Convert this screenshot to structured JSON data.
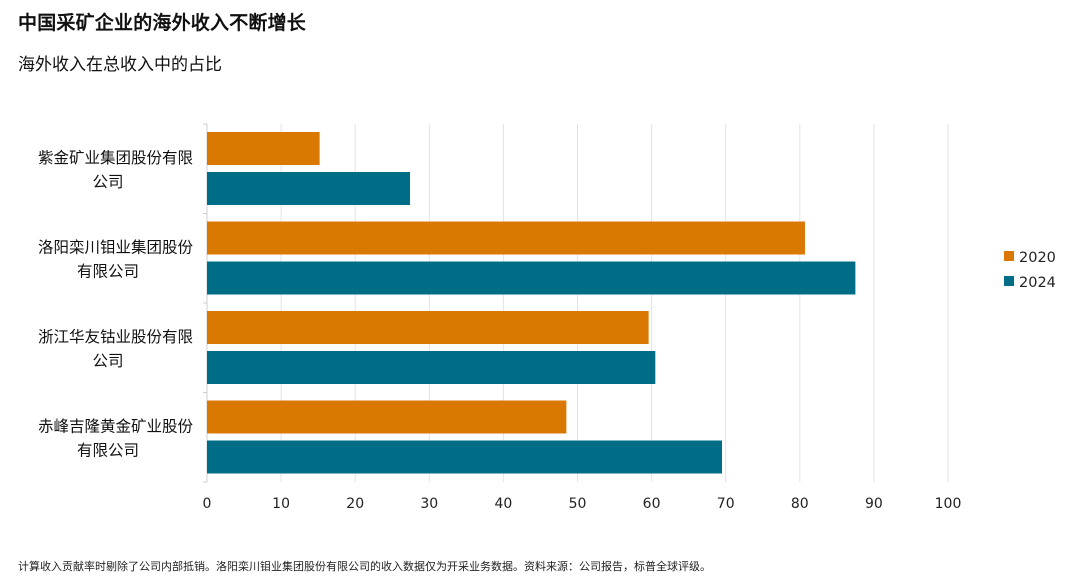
{
  "title": "中国采矿企业的海外收入不断增长",
  "subtitle": "海外收入在总收入中的占比",
  "footnote": "计算收入贡献率时剔除了公司内部抵销。洛阳栾川钼业集团股份有限公司的收入数据仅为开采业务数据。资料来源：公司报告，标普全球评级。",
  "chart_data": {
    "type": "bar",
    "orientation": "horizontal",
    "categories": [
      [
        "紫金矿业集团股份有限",
        "公司"
      ],
      [
        "洛阳栾川钼业集团股份",
        "有限公司"
      ],
      [
        "浙江华友钴业股份有限",
        "公司"
      ],
      [
        "赤峰吉隆黄金矿业股份",
        "有限公司"
      ]
    ],
    "series": [
      {
        "name": "2020",
        "color": "#D97904",
        "values": [
          15.2,
          80.7,
          59.6,
          48.5
        ]
      },
      {
        "name": "2024",
        "color": "#006D87",
        "values": [
          27.4,
          87.5,
          60.5,
          69.5
        ]
      }
    ],
    "xlim": [
      0,
      100
    ],
    "xticks": [
      0,
      10,
      20,
      30,
      40,
      50,
      60,
      70,
      80,
      90,
      100
    ],
    "grid": true,
    "legend_position": "right"
  }
}
